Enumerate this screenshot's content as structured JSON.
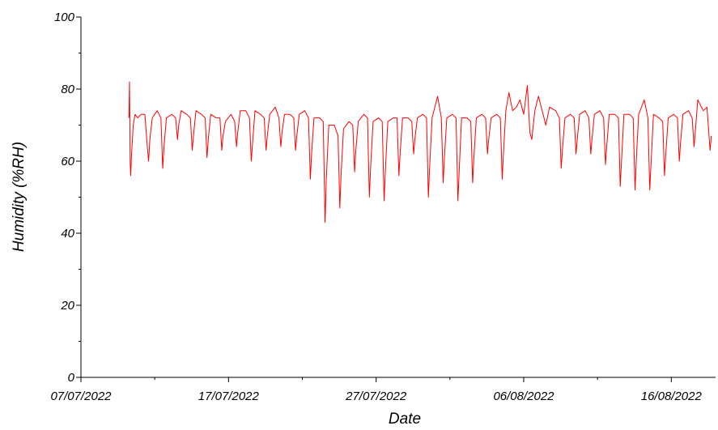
{
  "chart_data": {
    "type": "line",
    "title": "",
    "xlabel": "Date",
    "ylabel": "Humidity (%RH)",
    "xlim": [
      "2022-07-07",
      "2022-08-19"
    ],
    "ylim": [
      0,
      100
    ],
    "x_ticks": [
      "07/07/2022",
      "17/07/2022",
      "27/07/2022",
      "06/08/2022",
      "16/08/2022"
    ],
    "y_ticks": [
      0,
      20,
      40,
      60,
      80,
      100
    ],
    "grid": false,
    "legend": "none",
    "line_color": "#ff0000",
    "series": [
      {
        "values": [
          [
            "2022-07-10T06:00",
            72
          ],
          [
            "2022-07-10T07:00",
            82
          ],
          [
            "2022-07-10T08:00",
            60
          ],
          [
            "2022-07-10T09:00",
            56
          ],
          [
            "2022-07-10T10:00",
            61
          ],
          [
            "2022-07-10T13:00",
            70
          ],
          [
            "2022-07-10T16:00",
            73
          ],
          [
            "2022-07-10T20:00",
            72
          ],
          [
            "2022-07-11T02:00",
            73
          ],
          [
            "2022-07-11T08:00",
            73
          ],
          [
            "2022-07-11T12:00",
            64
          ],
          [
            "2022-07-11T14:00",
            60
          ],
          [
            "2022-07-11T16:00",
            66
          ],
          [
            "2022-07-11T20:00",
            72
          ],
          [
            "2022-07-12T04:00",
            74
          ],
          [
            "2022-07-12T10:00",
            72
          ],
          [
            "2022-07-12T13:00",
            58
          ],
          [
            "2022-07-12T15:00",
            64
          ],
          [
            "2022-07-12T19:00",
            72
          ],
          [
            "2022-07-13T04:00",
            73
          ],
          [
            "2022-07-13T10:00",
            72
          ],
          [
            "2022-07-13T13:00",
            66
          ],
          [
            "2022-07-13T15:00",
            70
          ],
          [
            "2022-07-13T19:00",
            74
          ],
          [
            "2022-07-14T04:00",
            73
          ],
          [
            "2022-07-14T10:00",
            72
          ],
          [
            "2022-07-14T13:00",
            63
          ],
          [
            "2022-07-14T15:00",
            67
          ],
          [
            "2022-07-14T19:00",
            74
          ],
          [
            "2022-07-15T04:00",
            73
          ],
          [
            "2022-07-15T10:00",
            72
          ],
          [
            "2022-07-15T13:00",
            61
          ],
          [
            "2022-07-15T15:00",
            66
          ],
          [
            "2022-07-15T19:00",
            73
          ],
          [
            "2022-07-16T04:00",
            72
          ],
          [
            "2022-07-16T10:00",
            72
          ],
          [
            "2022-07-16T13:00",
            63
          ],
          [
            "2022-07-16T15:00",
            67
          ],
          [
            "2022-07-16T19:00",
            71
          ],
          [
            "2022-07-17T04:00",
            73
          ],
          [
            "2022-07-17T10:00",
            71
          ],
          [
            "2022-07-17T13:00",
            64
          ],
          [
            "2022-07-17T15:00",
            68
          ],
          [
            "2022-07-17T19:00",
            74
          ],
          [
            "2022-07-18T04:00",
            74
          ],
          [
            "2022-07-18T10:00",
            72
          ],
          [
            "2022-07-18T13:00",
            60
          ],
          [
            "2022-07-18T15:00",
            65
          ],
          [
            "2022-07-18T19:00",
            74
          ],
          [
            "2022-07-19T04:00",
            73
          ],
          [
            "2022-07-19T10:00",
            72
          ],
          [
            "2022-07-19T13:00",
            63
          ],
          [
            "2022-07-19T15:00",
            67
          ],
          [
            "2022-07-19T19:00",
            73
          ],
          [
            "2022-07-20T04:00",
            75
          ],
          [
            "2022-07-20T10:00",
            72
          ],
          [
            "2022-07-20T13:00",
            64
          ],
          [
            "2022-07-20T15:00",
            68
          ],
          [
            "2022-07-20T19:00",
            73
          ],
          [
            "2022-07-21T04:00",
            73
          ],
          [
            "2022-07-21T10:00",
            72
          ],
          [
            "2022-07-21T13:00",
            63
          ],
          [
            "2022-07-21T15:00",
            67
          ],
          [
            "2022-07-21T19:00",
            73
          ],
          [
            "2022-07-22T04:00",
            74
          ],
          [
            "2022-07-22T10:00",
            72
          ],
          [
            "2022-07-22T13:00",
            55
          ],
          [
            "2022-07-22T15:00",
            62
          ],
          [
            "2022-07-22T19:00",
            72
          ],
          [
            "2022-07-23T04:00",
            72
          ],
          [
            "2022-07-23T10:00",
            71
          ],
          [
            "2022-07-23T13:00",
            43
          ],
          [
            "2022-07-23T15:00",
            55
          ],
          [
            "2022-07-23T19:00",
            70
          ],
          [
            "2022-07-24T04:00",
            70
          ],
          [
            "2022-07-24T10:00",
            67
          ],
          [
            "2022-07-24T13:00",
            47
          ],
          [
            "2022-07-24T15:00",
            56
          ],
          [
            "2022-07-24T19:00",
            69
          ],
          [
            "2022-07-25T04:00",
            71
          ],
          [
            "2022-07-25T10:00",
            70
          ],
          [
            "2022-07-25T13:00",
            57
          ],
          [
            "2022-07-25T15:00",
            63
          ],
          [
            "2022-07-25T19:00",
            71
          ],
          [
            "2022-07-26T04:00",
            73
          ],
          [
            "2022-07-26T10:00",
            72
          ],
          [
            "2022-07-26T13:00",
            50
          ],
          [
            "2022-07-26T15:00",
            58
          ],
          [
            "2022-07-26T19:00",
            71
          ],
          [
            "2022-07-27T04:00",
            72
          ],
          [
            "2022-07-27T10:00",
            71
          ],
          [
            "2022-07-27T13:00",
            49
          ],
          [
            "2022-07-27T15:00",
            57
          ],
          [
            "2022-07-27T19:00",
            71
          ],
          [
            "2022-07-28T04:00",
            72
          ],
          [
            "2022-07-28T10:00",
            72
          ],
          [
            "2022-07-28T13:00",
            56
          ],
          [
            "2022-07-28T15:00",
            62
          ],
          [
            "2022-07-28T19:00",
            72
          ],
          [
            "2022-07-29T04:00",
            72
          ],
          [
            "2022-07-29T10:00",
            71
          ],
          [
            "2022-07-29T13:00",
            62
          ],
          [
            "2022-07-29T15:00",
            66
          ],
          [
            "2022-07-29T19:00",
            72
          ],
          [
            "2022-07-30T04:00",
            73
          ],
          [
            "2022-07-30T10:00",
            72
          ],
          [
            "2022-07-30T13:00",
            50
          ],
          [
            "2022-07-30T15:00",
            58
          ],
          [
            "2022-07-30T19:00",
            72
          ],
          [
            "2022-07-31T04:00",
            78
          ],
          [
            "2022-07-31T10:00",
            72
          ],
          [
            "2022-07-31T13:00",
            54
          ],
          [
            "2022-07-31T15:00",
            61
          ],
          [
            "2022-07-31T19:00",
            72
          ],
          [
            "2022-08-01T04:00",
            73
          ],
          [
            "2022-08-01T10:00",
            72
          ],
          [
            "2022-08-01T13:00",
            49
          ],
          [
            "2022-08-01T15:00",
            57
          ],
          [
            "2022-08-01T19:00",
            72
          ],
          [
            "2022-08-02T04:00",
            72
          ],
          [
            "2022-08-02T10:00",
            71
          ],
          [
            "2022-08-02T13:00",
            54
          ],
          [
            "2022-08-02T15:00",
            61
          ],
          [
            "2022-08-02T19:00",
            72
          ],
          [
            "2022-08-03T04:00",
            73
          ],
          [
            "2022-08-03T10:00",
            72
          ],
          [
            "2022-08-03T13:00",
            62
          ],
          [
            "2022-08-03T15:00",
            66
          ],
          [
            "2022-08-03T19:00",
            72
          ],
          [
            "2022-08-04T04:00",
            73
          ],
          [
            "2022-08-04T10:00",
            72
          ],
          [
            "2022-08-04T13:00",
            55
          ],
          [
            "2022-08-04T15:00",
            62
          ],
          [
            "2022-08-04T19:00",
            74
          ],
          [
            "2022-08-05T00:00",
            79
          ],
          [
            "2022-08-05T06:00",
            74
          ],
          [
            "2022-08-05T12:00",
            75
          ],
          [
            "2022-08-05T18:00",
            77
          ],
          [
            "2022-08-06T00:00",
            73
          ],
          [
            "2022-08-06T06:00",
            81
          ],
          [
            "2022-08-06T10:00",
            68
          ],
          [
            "2022-08-06T13:00",
            66
          ],
          [
            "2022-08-06T18:00",
            74
          ],
          [
            "2022-08-07T00:00",
            78
          ],
          [
            "2022-08-07T06:00",
            74
          ],
          [
            "2022-08-07T12:00",
            70
          ],
          [
            "2022-08-07T18:00",
            75
          ],
          [
            "2022-08-08T04:00",
            74
          ],
          [
            "2022-08-08T10:00",
            72
          ],
          [
            "2022-08-08T13:00",
            58
          ],
          [
            "2022-08-08T15:00",
            63
          ],
          [
            "2022-08-08T19:00",
            72
          ],
          [
            "2022-08-09T04:00",
            73
          ],
          [
            "2022-08-09T10:00",
            72
          ],
          [
            "2022-08-09T13:00",
            62
          ],
          [
            "2022-08-09T15:00",
            66
          ],
          [
            "2022-08-09T19:00",
            73
          ],
          [
            "2022-08-10T04:00",
            74
          ],
          [
            "2022-08-10T10:00",
            72
          ],
          [
            "2022-08-10T13:00",
            62
          ],
          [
            "2022-08-10T15:00",
            66
          ],
          [
            "2022-08-10T19:00",
            73
          ],
          [
            "2022-08-11T04:00",
            74
          ],
          [
            "2022-08-11T10:00",
            72
          ],
          [
            "2022-08-11T13:00",
            59
          ],
          [
            "2022-08-11T15:00",
            64
          ],
          [
            "2022-08-11T19:00",
            73
          ],
          [
            "2022-08-12T04:00",
            73
          ],
          [
            "2022-08-12T10:00",
            72
          ],
          [
            "2022-08-12T13:00",
            53
          ],
          [
            "2022-08-12T15:00",
            60
          ],
          [
            "2022-08-12T19:00",
            73
          ],
          [
            "2022-08-13T04:00",
            73
          ],
          [
            "2022-08-13T10:00",
            72
          ],
          [
            "2022-08-13T13:00",
            52
          ],
          [
            "2022-08-13T15:00",
            60
          ],
          [
            "2022-08-13T19:00",
            73
          ],
          [
            "2022-08-14T04:00",
            77
          ],
          [
            "2022-08-14T10:00",
            72
          ],
          [
            "2022-08-14T13:00",
            52
          ],
          [
            "2022-08-14T15:00",
            59
          ],
          [
            "2022-08-14T19:00",
            73
          ],
          [
            "2022-08-15T04:00",
            72
          ],
          [
            "2022-08-15T10:00",
            71
          ],
          [
            "2022-08-15T13:00",
            56
          ],
          [
            "2022-08-15T15:00",
            62
          ],
          [
            "2022-08-15T19:00",
            72
          ],
          [
            "2022-08-16T04:00",
            73
          ],
          [
            "2022-08-16T10:00",
            72
          ],
          [
            "2022-08-16T13:00",
            60
          ],
          [
            "2022-08-16T15:00",
            65
          ],
          [
            "2022-08-16T19:00",
            73
          ],
          [
            "2022-08-17T04:00",
            74
          ],
          [
            "2022-08-17T10:00",
            72
          ],
          [
            "2022-08-17T13:00",
            64
          ],
          [
            "2022-08-17T15:00",
            68
          ],
          [
            "2022-08-17T19:00",
            77
          ],
          [
            "2022-08-18T04:00",
            74
          ],
          [
            "2022-08-18T10:00",
            75
          ],
          [
            "2022-08-18T13:00",
            68
          ],
          [
            "2022-08-18T15:00",
            63
          ],
          [
            "2022-08-18T17:00",
            67
          ]
        ]
      }
    ]
  }
}
